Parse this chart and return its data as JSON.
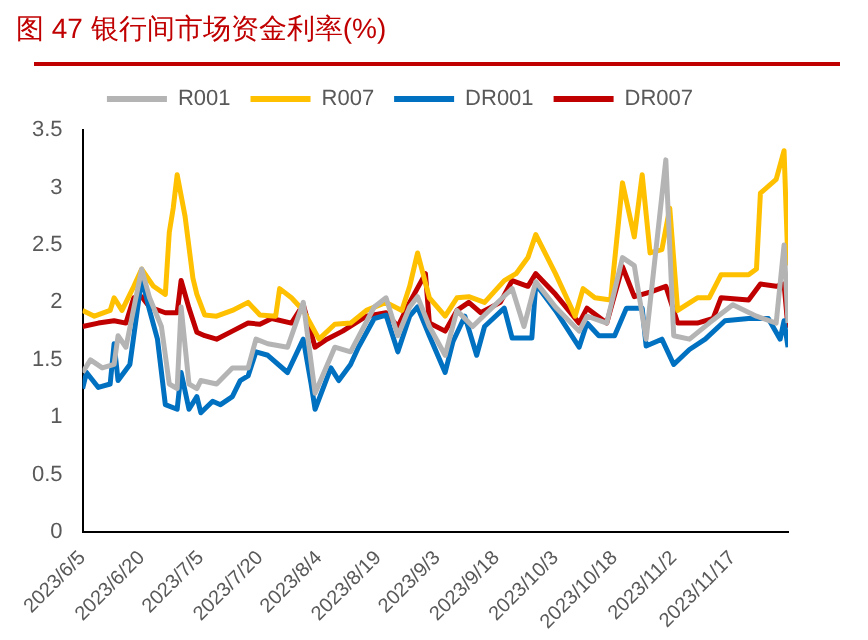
{
  "chart_data": {
    "type": "line",
    "title": "图 47 银行间市场资金利率(%)",
    "legend": "top",
    "grid": false,
    "marker": "none",
    "line_style": "solid",
    "ylim": [
      0,
      3.5
    ],
    "yticks": [
      0,
      0.5,
      1,
      1.5,
      2,
      2.5,
      3,
      3.5
    ],
    "xlim": [
      "2023-06-05",
      "2023-12-01"
    ],
    "xticks": [
      {
        "value": "2023-06-05",
        "label": "2023/6/5"
      },
      {
        "value": "2023-06-20",
        "label": "2023/6/20"
      },
      {
        "value": "2023-07-05",
        "label": "2023/7/5"
      },
      {
        "value": "2023-07-20",
        "label": "2023/7/20"
      },
      {
        "value": "2023-08-04",
        "label": "2023/8/4"
      },
      {
        "value": "2023-08-19",
        "label": "2023/8/19"
      },
      {
        "value": "2023-09-03",
        "label": "2023/9/3"
      },
      {
        "value": "2023-09-18",
        "label": "2023/9/18"
      },
      {
        "value": "2023-10-03",
        "label": "2023/10/3"
      },
      {
        "value": "2023-10-18",
        "label": "2023/10/18"
      },
      {
        "value": "2023-11-02",
        "label": "2023/11/2"
      },
      {
        "value": "2023-11-17",
        "label": "2023/11/17"
      }
    ],
    "series": [
      {
        "name": "R001",
        "color": "#b4b4b4",
        "x": [
          "2023-06-05",
          "2023-06-07",
          "2023-06-10",
          "2023-06-13",
          "2023-06-14",
          "2023-06-16",
          "2023-06-20",
          "2023-06-22",
          "2023-06-25",
          "2023-06-27",
          "2023-06-29",
          "2023-06-30",
          "2023-07-02",
          "2023-07-04",
          "2023-07-05",
          "2023-07-09",
          "2023-07-13",
          "2023-07-17",
          "2023-07-19",
          "2023-07-22",
          "2023-07-27",
          "2023-07-31",
          "2023-08-03",
          "2023-08-08",
          "2023-08-12",
          "2023-08-18",
          "2023-08-21",
          "2023-08-24",
          "2023-08-27",
          "2023-08-29",
          "2023-09-01",
          "2023-09-05",
          "2023-09-08",
          "2023-09-12",
          "2023-09-15",
          "2023-09-22",
          "2023-09-25",
          "2023-09-28",
          "2023-10-03",
          "2023-10-09",
          "2023-10-11",
          "2023-10-16",
          "2023-10-20",
          "2023-10-23",
          "2023-10-26",
          "2023-10-31",
          "2023-11-02",
          "2023-11-06",
          "2023-11-11",
          "2023-11-17",
          "2023-11-23",
          "2023-11-28",
          "2023-11-30",
          "2023-12-01"
        ],
        "values": [
          1.39,
          1.5,
          1.43,
          1.46,
          1.71,
          1.61,
          2.29,
          2.04,
          1.79,
          1.29,
          1.25,
          1.96,
          1.29,
          1.25,
          1.32,
          1.29,
          1.43,
          1.43,
          1.68,
          1.64,
          1.61,
          2.0,
          1.21,
          1.61,
          1.57,
          1.96,
          2.04,
          1.71,
          1.96,
          2.05,
          1.79,
          1.54,
          1.93,
          1.79,
          1.89,
          2.12,
          1.79,
          2.18,
          1.96,
          1.75,
          1.88,
          1.82,
          2.39,
          2.32,
          1.68,
          3.24,
          1.71,
          1.68,
          1.82,
          1.98,
          1.88,
          1.82,
          2.5,
          1.82
        ]
      },
      {
        "name": "R007",
        "color": "#ffc000",
        "x": [
          "2023-06-05",
          "2023-06-08",
          "2023-06-12",
          "2023-06-13",
          "2023-06-15",
          "2023-06-18",
          "2023-06-20",
          "2023-06-23",
          "2023-06-26",
          "2023-06-27",
          "2023-06-28",
          "2023-06-29",
          "2023-07-01",
          "2023-07-03",
          "2023-07-04",
          "2023-07-06",
          "2023-07-09",
          "2023-07-13",
          "2023-07-17",
          "2023-07-20",
          "2023-07-24",
          "2023-07-25",
          "2023-07-28",
          "2023-07-31",
          "2023-08-04",
          "2023-08-08",
          "2023-08-12",
          "2023-08-16",
          "2023-08-21",
          "2023-08-25",
          "2023-08-27",
          "2023-08-29",
          "2023-09-01",
          "2023-09-05",
          "2023-09-08",
          "2023-09-11",
          "2023-09-15",
          "2023-09-20",
          "2023-09-23",
          "2023-09-26",
          "2023-09-28",
          "2023-10-03",
          "2023-10-08",
          "2023-10-10",
          "2023-10-13",
          "2023-10-17",
          "2023-10-20",
          "2023-10-23",
          "2023-10-25",
          "2023-10-27",
          "2023-10-30",
          "2023-11-01",
          "2023-11-03",
          "2023-11-08",
          "2023-11-11",
          "2023-11-14",
          "2023-11-21",
          "2023-11-23",
          "2023-11-24",
          "2023-11-28",
          "2023-11-30",
          "2023-12-01"
        ],
        "values": [
          1.93,
          1.88,
          1.93,
          2.04,
          1.93,
          2.14,
          2.29,
          2.14,
          2.07,
          2.61,
          2.82,
          3.11,
          2.75,
          2.21,
          2.07,
          1.89,
          1.88,
          1.93,
          2.0,
          1.89,
          1.88,
          2.12,
          2.04,
          1.93,
          1.68,
          1.81,
          1.82,
          1.93,
          2.0,
          1.93,
          2.14,
          2.43,
          2.04,
          1.88,
          2.04,
          2.05,
          2.0,
          2.19,
          2.25,
          2.39,
          2.59,
          2.25,
          1.88,
          2.12,
          2.04,
          2.02,
          3.04,
          2.57,
          3.11,
          2.43,
          2.46,
          2.82,
          1.93,
          2.04,
          2.04,
          2.24,
          2.24,
          2.29,
          2.95,
          3.07,
          3.32,
          2.32
        ]
      },
      {
        "name": "DR001",
        "color": "#0070c0",
        "x": [
          "2023-06-05",
          "2023-06-06",
          "2023-06-09",
          "2023-06-12",
          "2023-06-13",
          "2023-06-14",
          "2023-06-17",
          "2023-06-20",
          "2023-06-22",
          "2023-06-24",
          "2023-06-26",
          "2023-06-29",
          "2023-06-30",
          "2023-07-02",
          "2023-07-04",
          "2023-07-05",
          "2023-07-08",
          "2023-07-10",
          "2023-07-13",
          "2023-07-15",
          "2023-07-17",
          "2023-07-19",
          "2023-07-22",
          "2023-07-27",
          "2023-07-31",
          "2023-08-02",
          "2023-08-03",
          "2023-08-07",
          "2023-08-09",
          "2023-08-12",
          "2023-08-14",
          "2023-08-18",
          "2023-08-21",
          "2023-08-24",
          "2023-08-27",
          "2023-08-29",
          "2023-09-01",
          "2023-09-05",
          "2023-09-07",
          "2023-09-10",
          "2023-09-13",
          "2023-09-15",
          "2023-09-20",
          "2023-09-22",
          "2023-09-27",
          "2023-09-28",
          "2023-10-03",
          "2023-10-09",
          "2023-10-11",
          "2023-10-14",
          "2023-10-18",
          "2023-10-21",
          "2023-10-25",
          "2023-10-26",
          "2023-10-30",
          "2023-11-02",
          "2023-11-06",
          "2023-11-10",
          "2023-11-15",
          "2023-11-21",
          "2023-11-26",
          "2023-11-29",
          "2023-11-30",
          "2023-12-01"
        ],
        "values": [
          1.25,
          1.39,
          1.26,
          1.29,
          1.64,
          1.32,
          1.46,
          2.21,
          1.93,
          1.68,
          1.11,
          1.07,
          1.39,
          1.07,
          1.18,
          1.04,
          1.14,
          1.11,
          1.18,
          1.32,
          1.36,
          1.57,
          1.54,
          1.39,
          1.68,
          1.29,
          1.07,
          1.43,
          1.32,
          1.46,
          1.61,
          1.86,
          1.89,
          1.57,
          1.88,
          1.96,
          1.71,
          1.39,
          1.66,
          1.88,
          1.54,
          1.79,
          1.95,
          1.69,
          1.69,
          2.16,
          1.93,
          1.61,
          1.82,
          1.71,
          1.71,
          1.95,
          1.95,
          1.62,
          1.68,
          1.46,
          1.59,
          1.68,
          1.84,
          1.86,
          1.86,
          1.68,
          1.84,
          1.61
        ]
      },
      {
        "name": "DR007",
        "color": "#c00000",
        "x": [
          "2023-06-05",
          "2023-06-09",
          "2023-06-13",
          "2023-06-16",
          "2023-06-18",
          "2023-06-20",
          "2023-06-22",
          "2023-06-26",
          "2023-06-29",
          "2023-06-30",
          "2023-07-02",
          "2023-07-04",
          "2023-07-06",
          "2023-07-09",
          "2023-07-13",
          "2023-07-17",
          "2023-07-20",
          "2023-07-23",
          "2023-07-28",
          "2023-07-31",
          "2023-08-03",
          "2023-08-06",
          "2023-08-10",
          "2023-08-16",
          "2023-08-21",
          "2023-08-24",
          "2023-08-27",
          "2023-08-31",
          "2023-09-01",
          "2023-09-05",
          "2023-09-08",
          "2023-09-11",
          "2023-09-14",
          "2023-09-19",
          "2023-09-22",
          "2023-09-26",
          "2023-09-28",
          "2023-10-03",
          "2023-10-09",
          "2023-10-11",
          "2023-10-16",
          "2023-10-20",
          "2023-10-23",
          "2023-10-27",
          "2023-10-31",
          "2023-11-03",
          "2023-11-08",
          "2023-11-12",
          "2023-11-14",
          "2023-11-21",
          "2023-11-24",
          "2023-11-28",
          "2023-11-30",
          "2023-12-01"
        ],
        "values": [
          1.79,
          1.82,
          1.84,
          1.82,
          2.04,
          2.05,
          1.96,
          1.91,
          1.91,
          2.19,
          1.95,
          1.74,
          1.71,
          1.68,
          1.75,
          1.82,
          1.81,
          1.86,
          1.82,
          1.98,
          1.61,
          1.68,
          1.75,
          1.88,
          1.91,
          1.79,
          2.0,
          2.25,
          1.82,
          1.75,
          1.93,
          2.0,
          1.91,
          2.0,
          2.19,
          2.14,
          2.25,
          2.07,
          1.82,
          1.95,
          1.82,
          2.31,
          2.05,
          2.09,
          2.14,
          1.82,
          1.82,
          1.86,
          2.04,
          2.02,
          2.16,
          2.14,
          2.16,
          1.78
        ]
      }
    ]
  }
}
